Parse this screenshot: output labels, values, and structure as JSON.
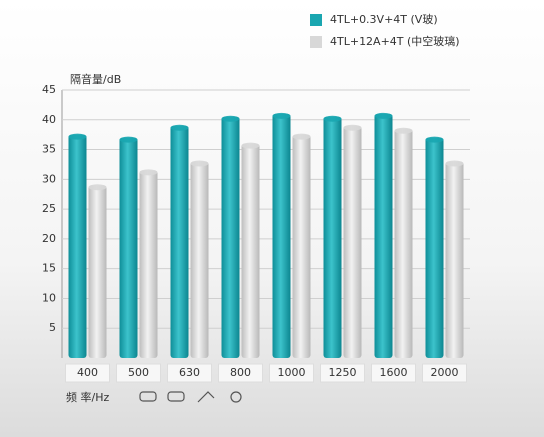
{
  "chart_data": {
    "type": "bar",
    "y_label": "隔音量/dB",
    "x_label": "频 率/Hz",
    "categories": [
      "400",
      "500",
      "630",
      "800",
      "1000",
      "1250",
      "1600",
      "2000"
    ],
    "series": [
      {
        "name": "4TL+0.3V+4T (V玻)",
        "color": "#1aa6b0",
        "values": [
          37.5,
          37,
          39,
          40.5,
          41,
          40.5,
          41,
          37
        ]
      },
      {
        "name": "4TL+12A+4T (中空玻璃)",
        "color": "#d8d8d8",
        "values": [
          29,
          31.5,
          33,
          36,
          37.5,
          39,
          38.5,
          33
        ]
      }
    ],
    "ylim": [
      0,
      45
    ],
    "yticks": [
      5,
      10,
      15,
      20,
      25,
      30,
      35,
      40,
      45
    ],
    "grid": true
  }
}
